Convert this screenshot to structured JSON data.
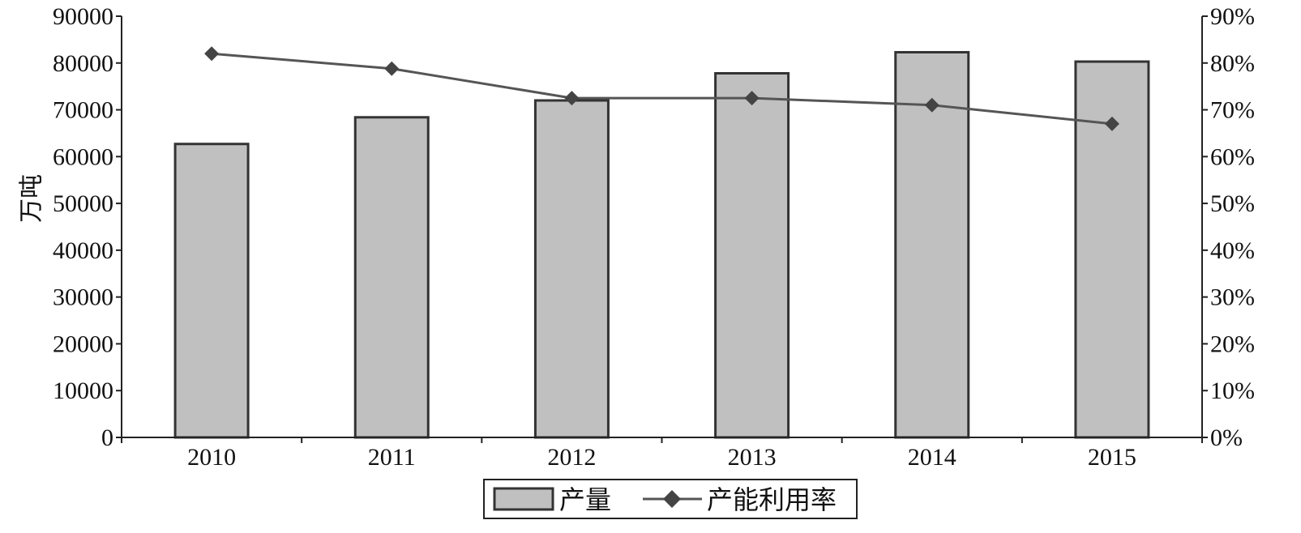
{
  "chart_data": {
    "type": "bar",
    "categories": [
      "2010",
      "2011",
      "2012",
      "2013",
      "2014",
      "2015"
    ],
    "series": [
      {
        "name": "产量",
        "type": "bar",
        "axis": "left",
        "values": [
          62700,
          68400,
          72000,
          77800,
          82300,
          80300
        ]
      },
      {
        "name": "产能利用率",
        "type": "line",
        "axis": "right",
        "values": [
          82,
          78.8,
          72.5,
          72.5,
          71,
          67
        ]
      }
    ],
    "ylabel": "万吨",
    "y_left": {
      "min": 0,
      "max": 90000,
      "step": 10000,
      "ticks": [
        "0",
        "10000",
        "20000",
        "30000",
        "40000",
        "50000",
        "60000",
        "70000",
        "80000",
        "90000"
      ]
    },
    "y_right": {
      "min": 0,
      "max": 90,
      "step": 10,
      "ticks": [
        "0%",
        "10%",
        "20%",
        "30%",
        "40%",
        "50%",
        "60%",
        "70%",
        "80%",
        "90%"
      ]
    },
    "grid": false,
    "legend_position": "bottom-center",
    "colors": {
      "bar_fill": "#c0c0c0",
      "bar_stroke": "#333333",
      "line": "#555555",
      "marker": "#444444",
      "axis": "#222222"
    },
    "marker_name": "diamond-marker"
  }
}
